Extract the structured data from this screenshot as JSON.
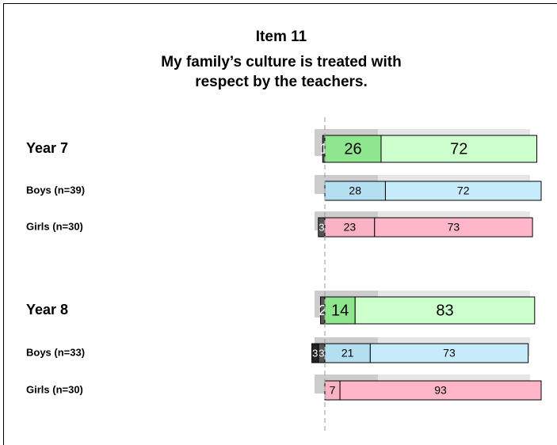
{
  "chart_data": {
    "type": "bar",
    "title": "Item 11",
    "subtitle": [
      "My family’s culture is treated with",
      "respect by the teachers."
    ],
    "categories": [
      "Year 7",
      "Boys (n=39)",
      "Girls (n=30)",
      "Year 8",
      "Boys (n=33)",
      "Girls (n=30)"
    ],
    "series": [
      {
        "color": "#222222",
        "values": [
          null,
          null,
          null,
          null,
          3,
          null
        ]
      },
      {
        "color": "#555555",
        "values": [
          1,
          null,
          3,
          2,
          3,
          null
        ]
      },
      {
        "color": [
          "#8fe68f",
          "#b3dff0",
          "#f9b2c4",
          "#8fe68f",
          "#b3dff0",
          "#f9b2c4"
        ],
        "values": [
          26,
          28,
          23,
          14,
          21,
          7
        ]
      },
      {
        "color": [
          "#ccffcc",
          "#c6ecfc",
          "#ffb6c8",
          "#ccffcc",
          "#c6ecfc",
          "#ffb6c8"
        ],
        "values": [
          72,
          72,
          73,
          83,
          73,
          93
        ]
      }
    ],
    "xlim": [
      0,
      100
    ]
  }
}
